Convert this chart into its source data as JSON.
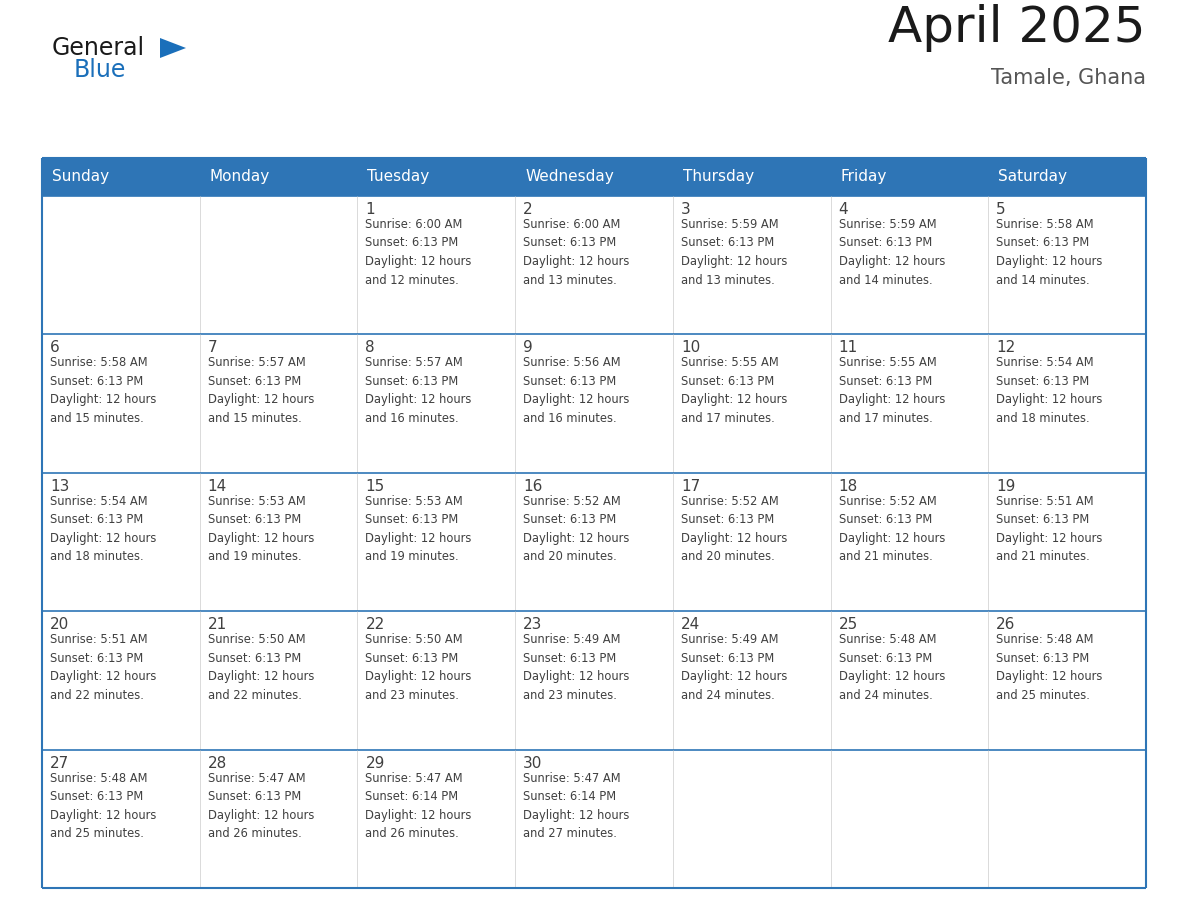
{
  "title": "April 2025",
  "subtitle": "Tamale, Ghana",
  "header_bg": "#2E75B6",
  "header_text_color": "#FFFFFF",
  "cell_bg_white": "#FFFFFF",
  "cell_bg_gray": "#F2F2F2",
  "border_color": "#2E75B6",
  "row_sep_color": "#2E75B6",
  "text_color": "#404040",
  "days_of_week": [
    "Sunday",
    "Monday",
    "Tuesday",
    "Wednesday",
    "Thursday",
    "Friday",
    "Saturday"
  ],
  "weeks": [
    [
      {
        "day": "",
        "info": ""
      },
      {
        "day": "",
        "info": ""
      },
      {
        "day": "1",
        "info": "Sunrise: 6:00 AM\nSunset: 6:13 PM\nDaylight: 12 hours\nand 12 minutes."
      },
      {
        "day": "2",
        "info": "Sunrise: 6:00 AM\nSunset: 6:13 PM\nDaylight: 12 hours\nand 13 minutes."
      },
      {
        "day": "3",
        "info": "Sunrise: 5:59 AM\nSunset: 6:13 PM\nDaylight: 12 hours\nand 13 minutes."
      },
      {
        "day": "4",
        "info": "Sunrise: 5:59 AM\nSunset: 6:13 PM\nDaylight: 12 hours\nand 14 minutes."
      },
      {
        "day": "5",
        "info": "Sunrise: 5:58 AM\nSunset: 6:13 PM\nDaylight: 12 hours\nand 14 minutes."
      }
    ],
    [
      {
        "day": "6",
        "info": "Sunrise: 5:58 AM\nSunset: 6:13 PM\nDaylight: 12 hours\nand 15 minutes."
      },
      {
        "day": "7",
        "info": "Sunrise: 5:57 AM\nSunset: 6:13 PM\nDaylight: 12 hours\nand 15 minutes."
      },
      {
        "day": "8",
        "info": "Sunrise: 5:57 AM\nSunset: 6:13 PM\nDaylight: 12 hours\nand 16 minutes."
      },
      {
        "day": "9",
        "info": "Sunrise: 5:56 AM\nSunset: 6:13 PM\nDaylight: 12 hours\nand 16 minutes."
      },
      {
        "day": "10",
        "info": "Sunrise: 5:55 AM\nSunset: 6:13 PM\nDaylight: 12 hours\nand 17 minutes."
      },
      {
        "day": "11",
        "info": "Sunrise: 5:55 AM\nSunset: 6:13 PM\nDaylight: 12 hours\nand 17 minutes."
      },
      {
        "day": "12",
        "info": "Sunrise: 5:54 AM\nSunset: 6:13 PM\nDaylight: 12 hours\nand 18 minutes."
      }
    ],
    [
      {
        "day": "13",
        "info": "Sunrise: 5:54 AM\nSunset: 6:13 PM\nDaylight: 12 hours\nand 18 minutes."
      },
      {
        "day": "14",
        "info": "Sunrise: 5:53 AM\nSunset: 6:13 PM\nDaylight: 12 hours\nand 19 minutes."
      },
      {
        "day": "15",
        "info": "Sunrise: 5:53 AM\nSunset: 6:13 PM\nDaylight: 12 hours\nand 19 minutes."
      },
      {
        "day": "16",
        "info": "Sunrise: 5:52 AM\nSunset: 6:13 PM\nDaylight: 12 hours\nand 20 minutes."
      },
      {
        "day": "17",
        "info": "Sunrise: 5:52 AM\nSunset: 6:13 PM\nDaylight: 12 hours\nand 20 minutes."
      },
      {
        "day": "18",
        "info": "Sunrise: 5:52 AM\nSunset: 6:13 PM\nDaylight: 12 hours\nand 21 minutes."
      },
      {
        "day": "19",
        "info": "Sunrise: 5:51 AM\nSunset: 6:13 PM\nDaylight: 12 hours\nand 21 minutes."
      }
    ],
    [
      {
        "day": "20",
        "info": "Sunrise: 5:51 AM\nSunset: 6:13 PM\nDaylight: 12 hours\nand 22 minutes."
      },
      {
        "day": "21",
        "info": "Sunrise: 5:50 AM\nSunset: 6:13 PM\nDaylight: 12 hours\nand 22 minutes."
      },
      {
        "day": "22",
        "info": "Sunrise: 5:50 AM\nSunset: 6:13 PM\nDaylight: 12 hours\nand 23 minutes."
      },
      {
        "day": "23",
        "info": "Sunrise: 5:49 AM\nSunset: 6:13 PM\nDaylight: 12 hours\nand 23 minutes."
      },
      {
        "day": "24",
        "info": "Sunrise: 5:49 AM\nSunset: 6:13 PM\nDaylight: 12 hours\nand 24 minutes."
      },
      {
        "day": "25",
        "info": "Sunrise: 5:48 AM\nSunset: 6:13 PM\nDaylight: 12 hours\nand 24 minutes."
      },
      {
        "day": "26",
        "info": "Sunrise: 5:48 AM\nSunset: 6:13 PM\nDaylight: 12 hours\nand 25 minutes."
      }
    ],
    [
      {
        "day": "27",
        "info": "Sunrise: 5:48 AM\nSunset: 6:13 PM\nDaylight: 12 hours\nand 25 minutes."
      },
      {
        "day": "28",
        "info": "Sunrise: 5:47 AM\nSunset: 6:13 PM\nDaylight: 12 hours\nand 26 minutes."
      },
      {
        "day": "29",
        "info": "Sunrise: 5:47 AM\nSunset: 6:14 PM\nDaylight: 12 hours\nand 26 minutes."
      },
      {
        "day": "30",
        "info": "Sunrise: 5:47 AM\nSunset: 6:14 PM\nDaylight: 12 hours\nand 27 minutes."
      },
      {
        "day": "",
        "info": ""
      },
      {
        "day": "",
        "info": ""
      },
      {
        "day": "",
        "info": ""
      }
    ]
  ],
  "logo_color_general": "#1a1a1a",
  "logo_color_blue": "#1a6fba",
  "logo_triangle_color": "#1a6fba"
}
